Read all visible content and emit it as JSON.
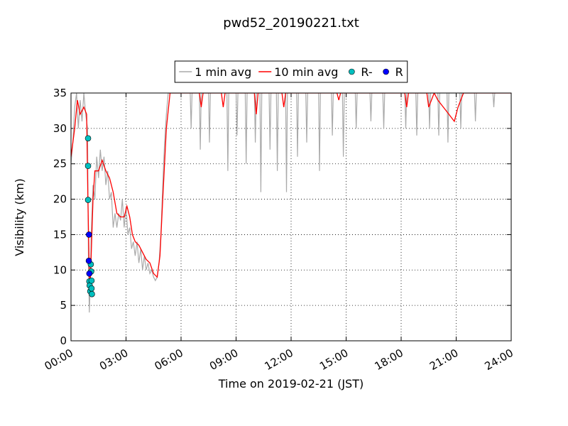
{
  "chart_data": {
    "type": "line",
    "title": "pwd52_20190221.txt",
    "xlabel": "Time on 2019-02-21 (JST)",
    "ylabel": "Visibility (km)",
    "xlim": [
      0,
      24
    ],
    "xticks": [
      {
        "value": 0,
        "label": "00:00"
      },
      {
        "value": 3,
        "label": "03:00"
      },
      {
        "value": 6,
        "label": "06:00"
      },
      {
        "value": 9,
        "label": "09:00"
      },
      {
        "value": 12,
        "label": "12:00"
      },
      {
        "value": 15,
        "label": "15:00"
      },
      {
        "value": 18,
        "label": "18:00"
      },
      {
        "value": 21,
        "label": "21:00"
      },
      {
        "value": 24,
        "label": "24:00"
      }
    ],
    "ylim": [
      0,
      35
    ],
    "yticks": [
      0,
      5,
      10,
      15,
      20,
      25,
      30,
      35
    ],
    "grid": true,
    "legend": "upper center",
    "series": [
      {
        "name": "1 min avg",
        "color": "#aaaaaa",
        "kind": "line",
        "x": [
          0.0,
          0.1,
          0.2,
          0.3,
          0.4,
          0.5,
          0.6,
          0.7,
          0.8,
          0.9,
          0.95,
          1.0,
          1.05,
          1.1,
          1.2,
          1.3,
          1.4,
          1.5,
          1.6,
          1.7,
          1.8,
          1.9,
          2.0,
          2.1,
          2.2,
          2.3,
          2.4,
          2.5,
          2.6,
          2.7,
          2.8,
          2.9,
          3.0,
          3.1,
          3.2,
          3.3,
          3.4,
          3.5,
          3.6,
          3.7,
          3.8,
          3.9,
          4.0,
          4.1,
          4.2,
          4.3,
          4.4,
          4.5,
          4.6,
          4.7,
          4.8,
          4.9,
          5.0,
          5.1,
          5.2,
          5.3,
          5.5,
          6.5,
          6.55,
          6.6,
          7.0,
          7.05,
          7.1,
          7.5,
          7.55,
          7.6,
          8.5,
          8.55,
          8.6,
          9.0,
          9.05,
          9.1,
          9.5,
          9.55,
          9.6,
          10.0,
          10.05,
          10.1,
          10.3,
          10.35,
          10.4,
          10.8,
          10.85,
          10.9,
          11.2,
          11.25,
          11.3,
          11.7,
          11.75,
          11.8,
          12.3,
          12.35,
          12.4,
          12.8,
          12.85,
          12.9,
          13.5,
          13.55,
          13.6,
          14.2,
          14.25,
          14.3,
          14.8,
          14.85,
          14.9,
          15.5,
          15.55,
          15.6,
          16.3,
          16.35,
          16.4,
          17.0,
          17.05,
          17.1,
          18.2,
          18.25,
          18.3,
          18.8,
          18.85,
          18.9,
          19.5,
          19.55,
          19.6,
          20.0,
          20.05,
          20.1,
          20.5,
          20.55,
          20.6,
          21.2,
          21.25,
          21.3,
          22.0,
          22.05,
          22.1,
          23.0,
          23.05,
          23.1,
          24.0
        ],
        "values": [
          25,
          28,
          33,
          35,
          30,
          34,
          31,
          35,
          32,
          30,
          12,
          4,
          8,
          15,
          22,
          20,
          26,
          23,
          27,
          24,
          26,
          22,
          24,
          20,
          21,
          16,
          18,
          16,
          18,
          17,
          20,
          16,
          19,
          15,
          16,
          13,
          14,
          12,
          14,
          11,
          13,
          10,
          12,
          10,
          11,
          9.5,
          10,
          9,
          8.5,
          9,
          11,
          15,
          22,
          28,
          32,
          35,
          35,
          35,
          30,
          35,
          35,
          27,
          35,
          35,
          28,
          35,
          35,
          24,
          35,
          35,
          29,
          35,
          35,
          25,
          35,
          35,
          28,
          35,
          35,
          21,
          35,
          35,
          27,
          35,
          35,
          24,
          35,
          35,
          21,
          35,
          35,
          26,
          35,
          35,
          28,
          35,
          35,
          24,
          35,
          35,
          29,
          35,
          35,
          26,
          35,
          35,
          30,
          35,
          35,
          31,
          35,
          35,
          30,
          35,
          35,
          30,
          35,
          35,
          29,
          35,
          35,
          30,
          35,
          35,
          29,
          35,
          35,
          28,
          35,
          35,
          30,
          35,
          35,
          31,
          35,
          35,
          33,
          35,
          35
        ]
      },
      {
        "name": "10 min avg",
        "color": "#ff0000",
        "kind": "line",
        "x": [
          0,
          0.2,
          0.35,
          0.5,
          0.7,
          0.85,
          0.92,
          1.0,
          1.05,
          1.1,
          1.2,
          1.3,
          1.5,
          1.7,
          1.9,
          2.1,
          2.3,
          2.5,
          2.7,
          2.9,
          3.05,
          3.2,
          3.35,
          3.5,
          3.7,
          3.9,
          4.1,
          4.3,
          4.5,
          4.7,
          4.85,
          5.0,
          5.2,
          5.4,
          7.0,
          7.1,
          7.2,
          8.2,
          8.3,
          8.4,
          10.0,
          10.1,
          10.2,
          11.5,
          11.6,
          11.7,
          14.5,
          14.6,
          14.7,
          18.2,
          18.3,
          18.4,
          19.4,
          19.5,
          19.8,
          20.0,
          20.3,
          20.6,
          20.9,
          21.1,
          21.4,
          24.0
        ],
        "values": [
          26,
          30,
          34,
          32,
          33,
          32,
          20,
          9,
          8,
          12,
          20,
          24,
          24,
          25.5,
          24,
          23,
          21,
          18,
          17.5,
          17.5,
          19,
          17.5,
          15,
          14,
          13.5,
          12.5,
          11.5,
          11,
          9.5,
          9,
          12,
          20,
          30,
          35,
          35,
          33,
          35,
          35,
          33,
          35,
          35,
          32,
          35,
          35,
          33,
          35,
          35,
          34,
          35,
          35,
          33,
          35,
          35,
          33,
          35,
          34,
          33,
          32,
          31,
          33,
          35,
          35
        ]
      },
      {
        "name": "R-",
        "color": "#00bfbf",
        "kind": "scatter",
        "x": [
          0.93,
          0.93,
          0.93,
          1.0,
          1.02,
          1.05,
          1.08,
          1.1,
          1.12,
          1.12,
          1.14
        ],
        "values": [
          28.6,
          24.7,
          19.9,
          8.4,
          7.8,
          7.0,
          10.8,
          9.8,
          8.5,
          7.4,
          6.6
        ]
      },
      {
        "name": "R",
        "color": "#0000ff",
        "kind": "scatter",
        "x": [
          0.98,
          0.97,
          1.0
        ],
        "values": [
          15.0,
          11.3,
          9.5
        ]
      }
    ]
  }
}
